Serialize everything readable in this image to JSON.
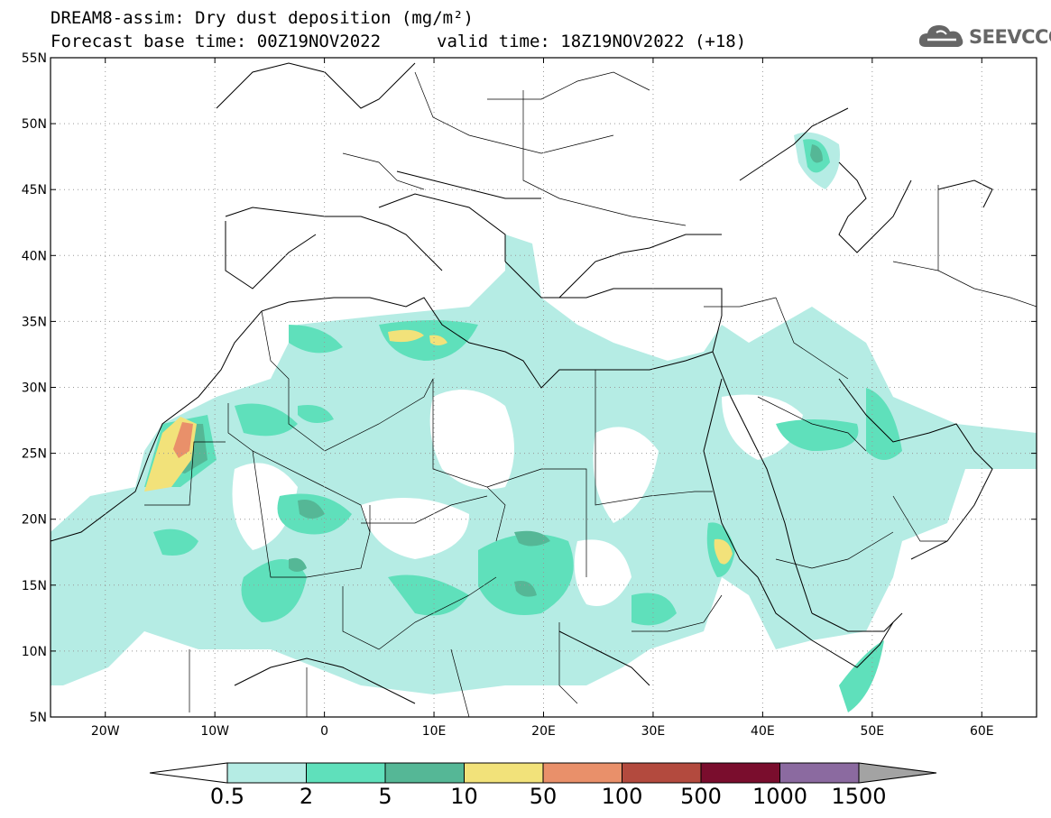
{
  "title": {
    "line1": "DREAM8-assim: Dry dust deposition (mg/m²)",
    "line2": "Forecast base time: 00Z19NOV2022",
    "valid": "valid time: 18Z19NOV2022 (+18)"
  },
  "logo": {
    "text": "SEEVCCC",
    "icon": "cloud-icon"
  },
  "axes": {
    "lon_ticks": [
      "20W",
      "10W",
      "0",
      "10E",
      "20E",
      "30E",
      "40E",
      "50E",
      "60E"
    ],
    "lon_values": [
      -20,
      -10,
      0,
      10,
      20,
      30,
      40,
      50,
      60
    ],
    "lat_ticks": [
      "55N",
      "50N",
      "45N",
      "40N",
      "35N",
      "30N",
      "25N",
      "20N",
      "15N",
      "10N",
      "5N"
    ],
    "lat_values": [
      55,
      50,
      45,
      40,
      35,
      30,
      25,
      20,
      15,
      10,
      5
    ],
    "lon_range": [
      -25,
      65
    ],
    "lat_range": [
      5,
      55
    ]
  },
  "legend": {
    "labels": [
      "0.5",
      "2",
      "5",
      "10",
      "50",
      "100",
      "500",
      "1000",
      "1500"
    ],
    "colors": [
      "#b5ece4",
      "#5fe0bb",
      "#55b796",
      "#f2e27a",
      "#e9906a",
      "#b34a3e",
      "#7a0d2d",
      "#8b6aa0",
      "#a3a3a3"
    ],
    "under_color": "#ffffff",
    "over_color": "#a3a3a3"
  }
}
